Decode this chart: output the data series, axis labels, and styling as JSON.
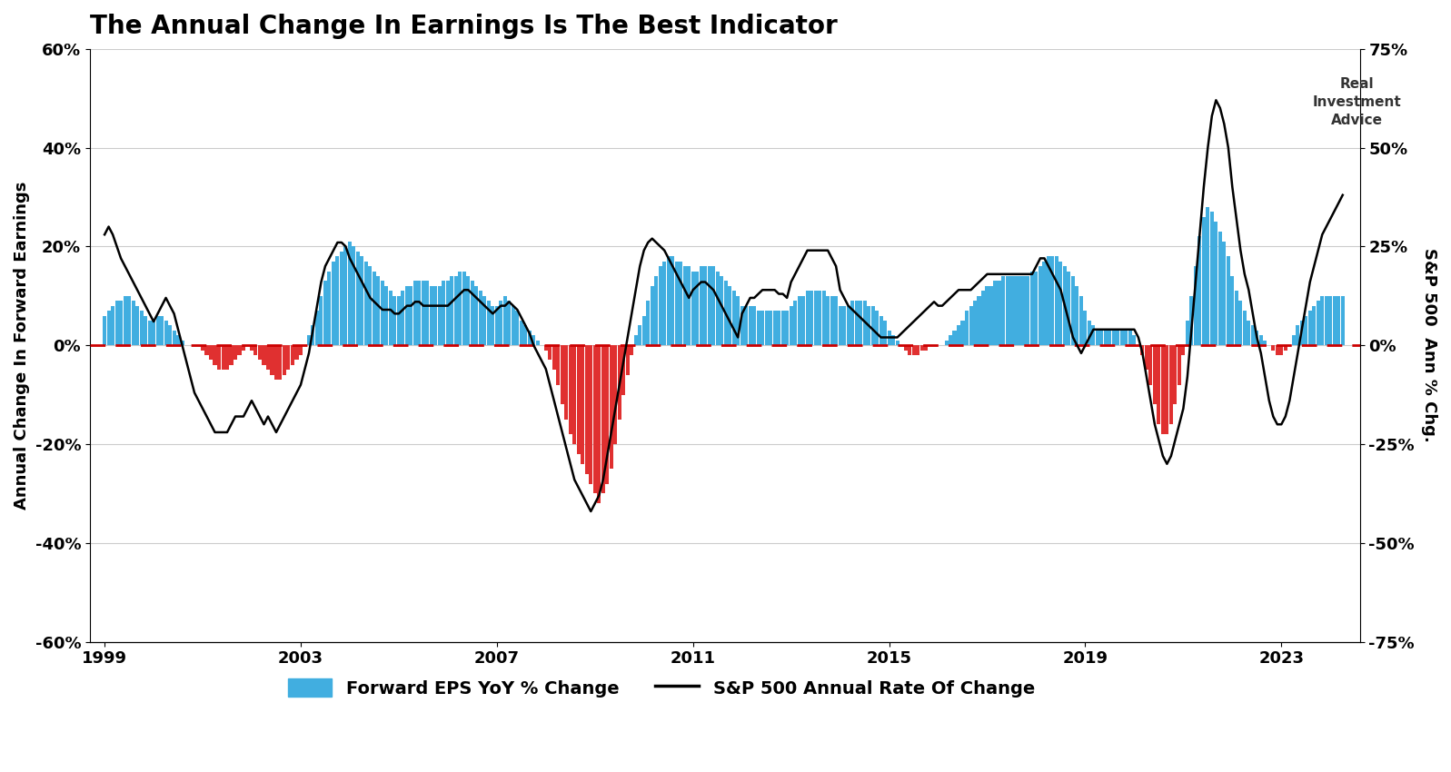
{
  "title": "The Annual Change In Earnings Is The Best Indicator",
  "ylabel_left": "Annual Change In Forward Earnings",
  "ylabel_right": "S&P 500  Ann % Chg.",
  "ylim_left": [
    -60,
    60
  ],
  "ylim_right": [
    -75,
    75
  ],
  "yticks_left": [
    -60,
    -40,
    -20,
    0,
    20,
    40,
    60
  ],
  "yticks_right": [
    -75,
    -50,
    -25,
    0,
    25,
    50,
    75
  ],
  "background_color": "#ffffff",
  "bar_color_pos": "#41aee0",
  "bar_color_neg": "#e03030",
  "line_color": "#000000",
  "dashed_color": "#cc0000",
  "title_fontsize": 20,
  "axis_fontsize": 13,
  "tick_fontsize": 13,
  "legend_fontsize": 14,
  "dates": [
    1999.0,
    1999.083,
    1999.167,
    1999.25,
    1999.333,
    1999.417,
    1999.5,
    1999.583,
    1999.667,
    1999.75,
    1999.833,
    1999.917,
    2000.0,
    2000.083,
    2000.167,
    2000.25,
    2000.333,
    2000.417,
    2000.5,
    2000.583,
    2000.667,
    2000.75,
    2000.833,
    2000.917,
    2001.0,
    2001.083,
    2001.167,
    2001.25,
    2001.333,
    2001.417,
    2001.5,
    2001.583,
    2001.667,
    2001.75,
    2001.833,
    2001.917,
    2002.0,
    2002.083,
    2002.167,
    2002.25,
    2002.333,
    2002.417,
    2002.5,
    2002.583,
    2002.667,
    2002.75,
    2002.833,
    2002.917,
    2003.0,
    2003.083,
    2003.167,
    2003.25,
    2003.333,
    2003.417,
    2003.5,
    2003.583,
    2003.667,
    2003.75,
    2003.833,
    2003.917,
    2004.0,
    2004.083,
    2004.167,
    2004.25,
    2004.333,
    2004.417,
    2004.5,
    2004.583,
    2004.667,
    2004.75,
    2004.833,
    2004.917,
    2005.0,
    2005.083,
    2005.167,
    2005.25,
    2005.333,
    2005.417,
    2005.5,
    2005.583,
    2005.667,
    2005.75,
    2005.833,
    2005.917,
    2006.0,
    2006.083,
    2006.167,
    2006.25,
    2006.333,
    2006.417,
    2006.5,
    2006.583,
    2006.667,
    2006.75,
    2006.833,
    2006.917,
    2007.0,
    2007.083,
    2007.167,
    2007.25,
    2007.333,
    2007.417,
    2007.5,
    2007.583,
    2007.667,
    2007.75,
    2007.833,
    2007.917,
    2008.0,
    2008.083,
    2008.167,
    2008.25,
    2008.333,
    2008.417,
    2008.5,
    2008.583,
    2008.667,
    2008.75,
    2008.833,
    2008.917,
    2009.0,
    2009.083,
    2009.167,
    2009.25,
    2009.333,
    2009.417,
    2009.5,
    2009.583,
    2009.667,
    2009.75,
    2009.833,
    2009.917,
    2010.0,
    2010.083,
    2010.167,
    2010.25,
    2010.333,
    2010.417,
    2010.5,
    2010.583,
    2010.667,
    2010.75,
    2010.833,
    2010.917,
    2011.0,
    2011.083,
    2011.167,
    2011.25,
    2011.333,
    2011.417,
    2011.5,
    2011.583,
    2011.667,
    2011.75,
    2011.833,
    2011.917,
    2012.0,
    2012.083,
    2012.167,
    2012.25,
    2012.333,
    2012.417,
    2012.5,
    2012.583,
    2012.667,
    2012.75,
    2012.833,
    2012.917,
    2013.0,
    2013.083,
    2013.167,
    2013.25,
    2013.333,
    2013.417,
    2013.5,
    2013.583,
    2013.667,
    2013.75,
    2013.833,
    2013.917,
    2014.0,
    2014.083,
    2014.167,
    2014.25,
    2014.333,
    2014.417,
    2014.5,
    2014.583,
    2014.667,
    2014.75,
    2014.833,
    2014.917,
    2015.0,
    2015.083,
    2015.167,
    2015.25,
    2015.333,
    2015.417,
    2015.5,
    2015.583,
    2015.667,
    2015.75,
    2015.833,
    2015.917,
    2016.0,
    2016.083,
    2016.167,
    2016.25,
    2016.333,
    2016.417,
    2016.5,
    2016.583,
    2016.667,
    2016.75,
    2016.833,
    2016.917,
    2017.0,
    2017.083,
    2017.167,
    2017.25,
    2017.333,
    2017.417,
    2017.5,
    2017.583,
    2017.667,
    2017.75,
    2017.833,
    2017.917,
    2018.0,
    2018.083,
    2018.167,
    2018.25,
    2018.333,
    2018.417,
    2018.5,
    2018.583,
    2018.667,
    2018.75,
    2018.833,
    2018.917,
    2019.0,
    2019.083,
    2019.167,
    2019.25,
    2019.333,
    2019.417,
    2019.5,
    2019.583,
    2019.667,
    2019.75,
    2019.833,
    2019.917,
    2020.0,
    2020.083,
    2020.167,
    2020.25,
    2020.333,
    2020.417,
    2020.5,
    2020.583,
    2020.667,
    2020.75,
    2020.833,
    2020.917,
    2021.0,
    2021.083,
    2021.167,
    2021.25,
    2021.333,
    2021.417,
    2021.5,
    2021.583,
    2021.667,
    2021.75,
    2021.833,
    2021.917,
    2022.0,
    2022.083,
    2022.167,
    2022.25,
    2022.333,
    2022.417,
    2022.5,
    2022.583,
    2022.667,
    2022.75,
    2022.833,
    2022.917,
    2023.0,
    2023.083,
    2023.167,
    2023.25,
    2023.333,
    2023.417,
    2023.5,
    2023.583,
    2023.667,
    2023.75,
    2023.833,
    2023.917,
    2024.0,
    2024.083,
    2024.167,
    2024.25
  ],
  "eps_yoy": [
    6,
    7,
    8,
    9,
    9,
    10,
    10,
    9,
    8,
    7,
    6,
    5,
    5,
    6,
    6,
    5,
    4,
    3,
    2,
    1,
    0,
    0,
    0,
    0,
    -1,
    -2,
    -3,
    -4,
    -5,
    -5,
    -5,
    -4,
    -3,
    -2,
    -1,
    0,
    -1,
    -2,
    -3,
    -4,
    -5,
    -6,
    -7,
    -7,
    -6,
    -5,
    -4,
    -3,
    -2,
    0,
    2,
    4,
    7,
    10,
    13,
    15,
    17,
    18,
    19,
    20,
    21,
    20,
    19,
    18,
    17,
    16,
    15,
    14,
    13,
    12,
    11,
    10,
    10,
    11,
    12,
    12,
    13,
    13,
    13,
    13,
    12,
    12,
    12,
    13,
    13,
    14,
    14,
    15,
    15,
    14,
    13,
    12,
    11,
    10,
    9,
    8,
    8,
    9,
    10,
    9,
    8,
    7,
    5,
    4,
    3,
    2,
    1,
    0,
    -1,
    -3,
    -5,
    -8,
    -12,
    -15,
    -18,
    -20,
    -22,
    -24,
    -26,
    -28,
    -30,
    -32,
    -30,
    -28,
    -25,
    -20,
    -15,
    -10,
    -6,
    -2,
    2,
    4,
    6,
    9,
    12,
    14,
    16,
    17,
    18,
    18,
    17,
    17,
    16,
    16,
    15,
    15,
    16,
    16,
    16,
    16,
    15,
    14,
    13,
    12,
    11,
    10,
    8,
    8,
    8,
    8,
    7,
    7,
    7,
    7,
    7,
    7,
    7,
    7,
    8,
    9,
    10,
    10,
    11,
    11,
    11,
    11,
    11,
    10,
    10,
    10,
    8,
    8,
    8,
    9,
    9,
    9,
    9,
    8,
    8,
    7,
    6,
    5,
    3,
    2,
    1,
    0,
    -1,
    -2,
    -2,
    -2,
    -1,
    -1,
    0,
    0,
    0,
    0,
    1,
    2,
    3,
    4,
    5,
    7,
    8,
    9,
    10,
    11,
    12,
    12,
    13,
    13,
    14,
    14,
    14,
    14,
    14,
    14,
    14,
    15,
    15,
    16,
    17,
    18,
    18,
    18,
    17,
    16,
    15,
    14,
    12,
    10,
    7,
    5,
    4,
    3,
    3,
    3,
    3,
    3,
    3,
    3,
    3,
    3,
    2,
    0,
    -2,
    -5,
    -8,
    -12,
    -16,
    -18,
    -18,
    -16,
    -12,
    -8,
    -2,
    5,
    10,
    16,
    22,
    26,
    28,
    27,
    25,
    23,
    21,
    18,
    14,
    11,
    9,
    7,
    5,
    4,
    3,
    2,
    1,
    0,
    -1,
    -2,
    -2,
    -1,
    0,
    2,
    4,
    5,
    6,
    7,
    8,
    9,
    10,
    10,
    10,
    10,
    10,
    10
  ],
  "sp500_roc": [
    28,
    30,
    28,
    25,
    22,
    20,
    18,
    16,
    14,
    12,
    10,
    8,
    6,
    8,
    10,
    12,
    10,
    8,
    4,
    0,
    -4,
    -8,
    -12,
    -14,
    -16,
    -18,
    -20,
    -22,
    -22,
    -22,
    -22,
    -20,
    -18,
    -18,
    -18,
    -16,
    -14,
    -16,
    -18,
    -20,
    -18,
    -20,
    -22,
    -20,
    -18,
    -16,
    -14,
    -12,
    -10,
    -6,
    -2,
    4,
    10,
    16,
    20,
    22,
    24,
    26,
    26,
    25,
    22,
    20,
    18,
    16,
    14,
    12,
    11,
    10,
    9,
    9,
    9,
    8,
    8,
    9,
    10,
    10,
    11,
    11,
    10,
    10,
    10,
    10,
    10,
    10,
    10,
    11,
    12,
    13,
    14,
    14,
    13,
    12,
    11,
    10,
    9,
    8,
    9,
    10,
    10,
    11,
    10,
    9,
    7,
    5,
    3,
    0,
    -2,
    -4,
    -6,
    -10,
    -14,
    -18,
    -22,
    -26,
    -30,
    -34,
    -36,
    -38,
    -40,
    -42,
    -40,
    -38,
    -34,
    -28,
    -22,
    -16,
    -10,
    -4,
    2,
    8,
    14,
    20,
    24,
    26,
    27,
    26,
    25,
    24,
    22,
    20,
    18,
    16,
    14,
    12,
    14,
    15,
    16,
    16,
    15,
    14,
    12,
    10,
    8,
    6,
    4,
    2,
    8,
    10,
    12,
    12,
    13,
    14,
    14,
    14,
    14,
    13,
    13,
    12,
    16,
    18,
    20,
    22,
    24,
    24,
    24,
    24,
    24,
    24,
    22,
    20,
    14,
    12,
    10,
    9,
    8,
    7,
    6,
    5,
    4,
    3,
    2,
    2,
    2,
    2,
    2,
    3,
    4,
    5,
    6,
    7,
    8,
    9,
    10,
    11,
    10,
    10,
    11,
    12,
    13,
    14,
    14,
    14,
    14,
    15,
    16,
    17,
    18,
    18,
    18,
    18,
    18,
    18,
    18,
    18,
    18,
    18,
    18,
    18,
    20,
    22,
    22,
    20,
    18,
    16,
    14,
    10,
    6,
    2,
    0,
    -2,
    0,
    2,
    4,
    4,
    4,
    4,
    4,
    4,
    4,
    4,
    4,
    4,
    4,
    2,
    -2,
    -8,
    -14,
    -20,
    -24,
    -28,
    -30,
    -28,
    -24,
    -20,
    -16,
    -8,
    4,
    16,
    28,
    40,
    50,
    58,
    62,
    60,
    56,
    50,
    40,
    32,
    24,
    18,
    14,
    8,
    2,
    -2,
    -8,
    -14,
    -18,
    -20,
    -20,
    -18,
    -14,
    -8,
    -2,
    4,
    10,
    16,
    20,
    24,
    28,
    30,
    32,
    34,
    36,
    38
  ]
}
